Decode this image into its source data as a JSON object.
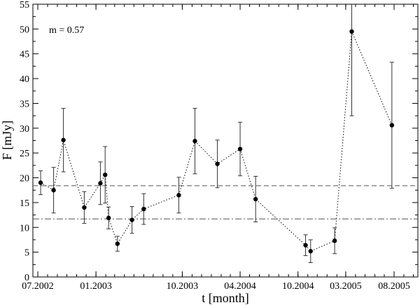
{
  "chart_data": {
    "type": "scatter",
    "xlabel": "t [month]",
    "ylabel": "F [mJy]",
    "annotation": "m = 0.57",
    "ylim": [
      0,
      55
    ],
    "yticks": [
      0,
      5,
      10,
      15,
      20,
      25,
      30,
      35,
      40,
      45,
      50,
      55
    ],
    "x_tick_labels": [
      "07.2002",
      "01.2003",
      "10.2003",
      "04.2004",
      "10.2004",
      "03.2005",
      "08.2005"
    ],
    "points": [
      {
        "t": "2002-07-10",
        "y": 19.0,
        "err": 2.4
      },
      {
        "t": "2002-08-20",
        "y": 17.5,
        "err": 4.6
      },
      {
        "t": "2002-09-20",
        "y": 27.6,
        "err": 6.4
      },
      {
        "t": "2002-11-25",
        "y": 14.0,
        "err": 3.2
      },
      {
        "t": "2003-01-15",
        "y": 18.9,
        "err": 4.3
      },
      {
        "t": "2003-01-30",
        "y": 20.6,
        "err": 5.7
      },
      {
        "t": "2003-02-10",
        "y": 11.9,
        "err": 2.2
      },
      {
        "t": "2003-03-10",
        "y": 6.7,
        "err": 1.5
      },
      {
        "t": "2003-04-25",
        "y": 11.5,
        "err": 2.7
      },
      {
        "t": "2003-06-01",
        "y": 13.7,
        "err": 3.1
      },
      {
        "t": "2003-09-20",
        "y": 16.5,
        "err": 3.6
      },
      {
        "t": "2003-11-10",
        "y": 27.4,
        "err": 6.6
      },
      {
        "t": "2004-01-20",
        "y": 22.8,
        "err": 4.8
      },
      {
        "t": "2004-04-01",
        "y": 25.8,
        "err": 5.4
      },
      {
        "t": "2004-05-20",
        "y": 15.7,
        "err": 4.6
      },
      {
        "t": "2004-10-25",
        "y": 6.4,
        "err": 2.1
      },
      {
        "t": "2004-11-10",
        "y": 5.2,
        "err": 2.3
      },
      {
        "t": "2005-01-25",
        "y": 7.3,
        "err": 2.6
      },
      {
        "t": "2005-03-20",
        "y": 49.5,
        "err": 17.0
      },
      {
        "t": "2005-07-25",
        "y": 30.6,
        "err": 12.7
      }
    ],
    "reference_lines": [
      {
        "style": "dashed",
        "y": 18.4
      },
      {
        "style": "dashdot",
        "y": 11.7
      }
    ]
  }
}
